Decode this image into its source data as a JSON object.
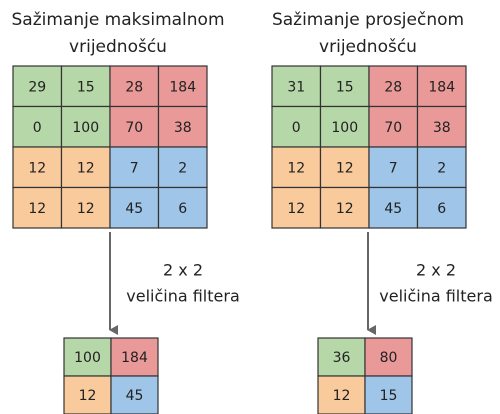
{
  "panels": [
    {
      "title_lines": [
        "Sažimanje maksimalnom",
        "vrijednošću"
      ],
      "input": [
        [
          29,
          15,
          28,
          184
        ],
        [
          0,
          100,
          70,
          38
        ],
        [
          12,
          12,
          7,
          2
        ],
        [
          12,
          12,
          45,
          6
        ]
      ],
      "filter_lines": [
        "2 x 2",
        "veličina filtera"
      ],
      "output": [
        [
          100,
          184
        ],
        [
          12,
          45
        ]
      ]
    },
    {
      "title_lines": [
        "Sažimanje prosječnom",
        "vrijednošću"
      ],
      "input": [
        [
          31,
          15,
          28,
          184
        ],
        [
          0,
          100,
          70,
          38
        ],
        [
          12,
          12,
          7,
          2
        ],
        [
          12,
          12,
          45,
          6
        ]
      ],
      "filter_lines": [
        "2 x 2",
        "veličina filtera"
      ],
      "output": [
        [
          36,
          80
        ],
        [
          12,
          15
        ]
      ]
    }
  ]
}
